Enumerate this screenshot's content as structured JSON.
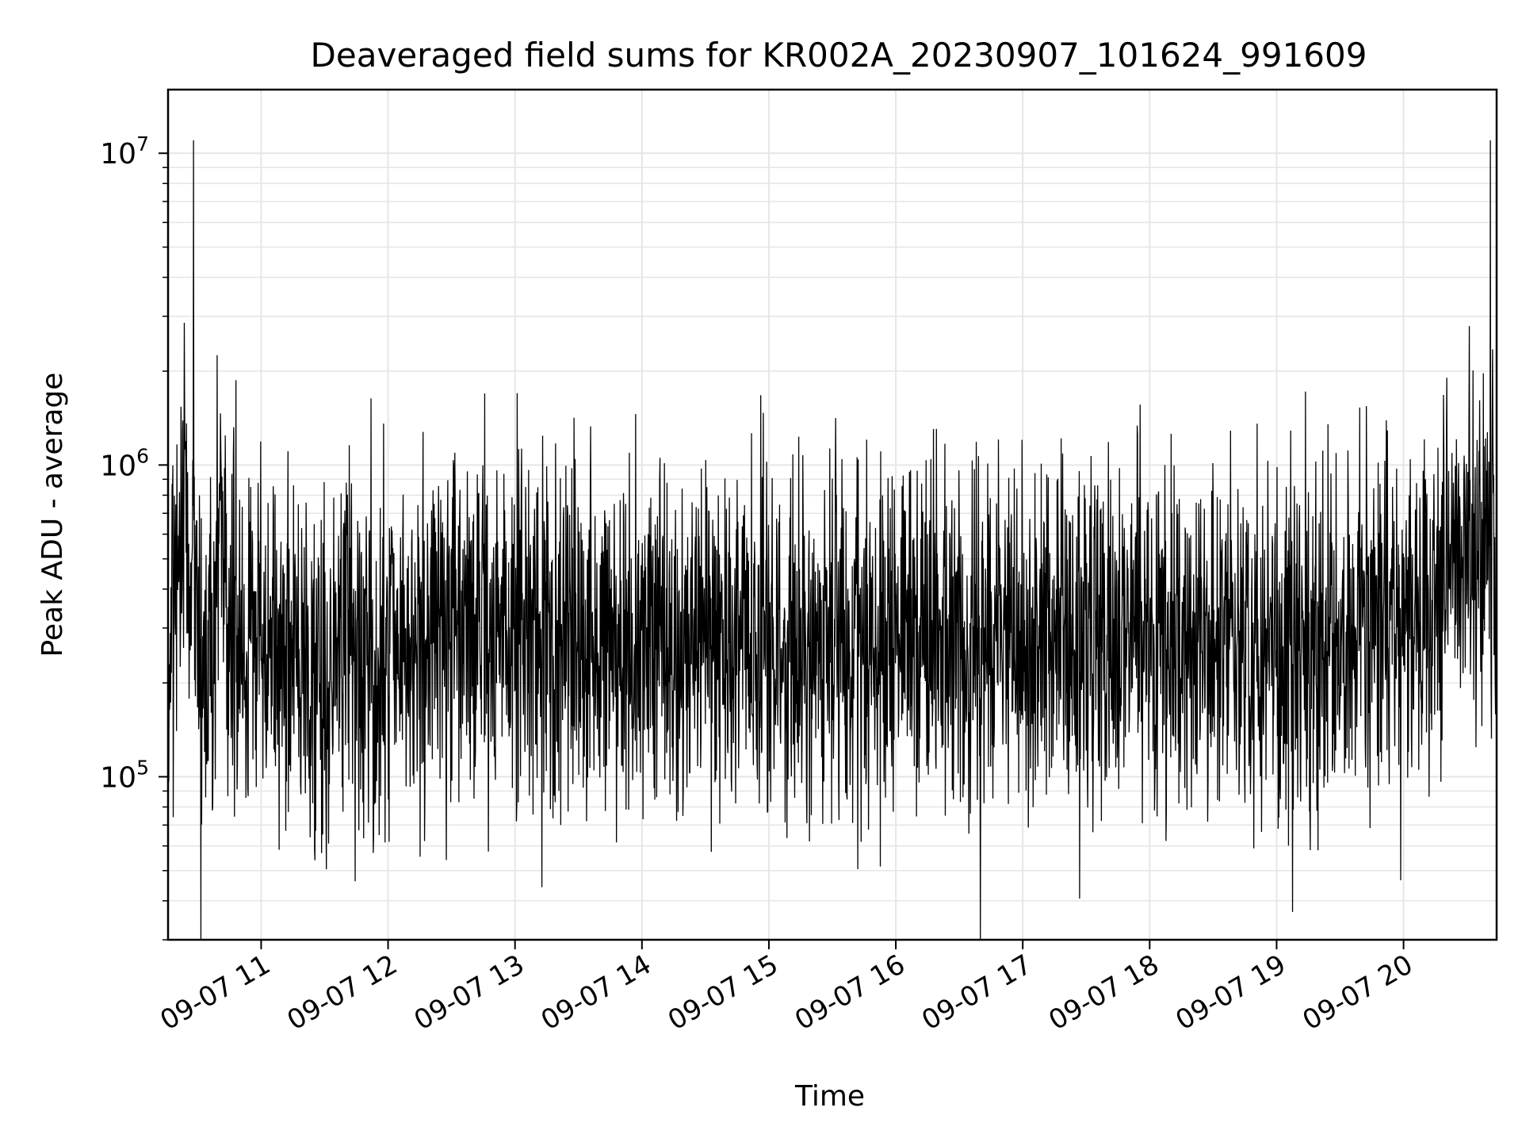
{
  "chart_data": {
    "type": "line",
    "title": "Deaveraged field sums for KR002A_20230907_101624_991609",
    "xlabel": "Time",
    "ylabel": "Peak ADU - average",
    "yscale": "log",
    "ylim": [
      30000,
      16000000
    ],
    "xlim": [
      "2023-09-07 10:16",
      "2023-09-07 20:44"
    ],
    "grid": true,
    "line_color": "#000000",
    "x_ticks": [
      {
        "label": "09-07 11",
        "value": "2023-09-07 11:00"
      },
      {
        "label": "09-07 12",
        "value": "2023-09-07 12:00"
      },
      {
        "label": "09-07 13",
        "value": "2023-09-07 13:00"
      },
      {
        "label": "09-07 14",
        "value": "2023-09-07 14:00"
      },
      {
        "label": "09-07 15",
        "value": "2023-09-07 15:00"
      },
      {
        "label": "09-07 16",
        "value": "2023-09-07 16:00"
      },
      {
        "label": "09-07 17",
        "value": "2023-09-07 17:00"
      },
      {
        "label": "09-07 18",
        "value": "2023-09-07 18:00"
      },
      {
        "label": "09-07 19",
        "value": "2023-09-07 19:00"
      },
      {
        "label": "09-07 20",
        "value": "2023-09-07 20:00"
      }
    ],
    "y_ticks": [
      {
        "base": "10",
        "exp": "5",
        "value": 100000
      },
      {
        "base": "10",
        "exp": "6",
        "value": 1000000
      },
      {
        "base": "10",
        "exp": "7",
        "value": 10000000
      }
    ],
    "series": [
      {
        "x": [
          "2023-09-07 10:16",
          "2023-09-07 10:20",
          "2023-09-07 10:24",
          "2023-09-07 10:28",
          "2023-09-07 10:30",
          "2023-09-07 10:32",
          "2023-09-07 10:36",
          "2023-09-07 10:40",
          "2023-09-07 10:45",
          "2023-09-07 10:50",
          "2023-09-07 11:00",
          "2023-09-07 11:15",
          "2023-09-07 11:30",
          "2023-09-07 11:45",
          "2023-09-07 12:00",
          "2023-09-07 12:15",
          "2023-09-07 12:30",
          "2023-09-07 12:45",
          "2023-09-07 13:00",
          "2023-09-07 13:01",
          "2023-09-07 13:15",
          "2023-09-07 13:30",
          "2023-09-07 13:45",
          "2023-09-07 14:00",
          "2023-09-07 14:15",
          "2023-09-07 14:30",
          "2023-09-07 14:45",
          "2023-09-07 15:00",
          "2023-09-07 15:15",
          "2023-09-07 15:30",
          "2023-09-07 15:45",
          "2023-09-07 16:00",
          "2023-09-07 16:15",
          "2023-09-07 16:30",
          "2023-09-07 16:45",
          "2023-09-07 17:00",
          "2023-09-07 17:15",
          "2023-09-07 17:30",
          "2023-09-07 17:45",
          "2023-09-07 18:00",
          "2023-09-07 18:15",
          "2023-09-07 18:30",
          "2023-09-07 18:45",
          "2023-09-07 19:00",
          "2023-09-07 19:15",
          "2023-09-07 19:30",
          "2023-09-07 19:45",
          "2023-09-07 20:00",
          "2023-09-07 20:10",
          "2023-09-07 20:20",
          "2023-09-07 20:30",
          "2023-09-07 20:40",
          "2023-09-07 20:41",
          "2023-09-07 20:44"
        ],
        "y": [
          250000,
          400000,
          700000,
          11000000,
          300000,
          220000,
          260000,
          600000,
          400000,
          280000,
          250000,
          260000,
          240000,
          250000,
          250000,
          260000,
          270000,
          290000,
          300000,
          1700000,
          300000,
          290000,
          280000,
          290000,
          280000,
          290000,
          280000,
          280000,
          270000,
          280000,
          270000,
          260000,
          270000,
          260000,
          270000,
          260000,
          270000,
          260000,
          270000,
          260000,
          270000,
          260000,
          270000,
          270000,
          280000,
          280000,
          290000,
          300000,
          320000,
          450000,
          500000,
          520000,
          11000000,
          600000
        ]
      }
    ]
  }
}
